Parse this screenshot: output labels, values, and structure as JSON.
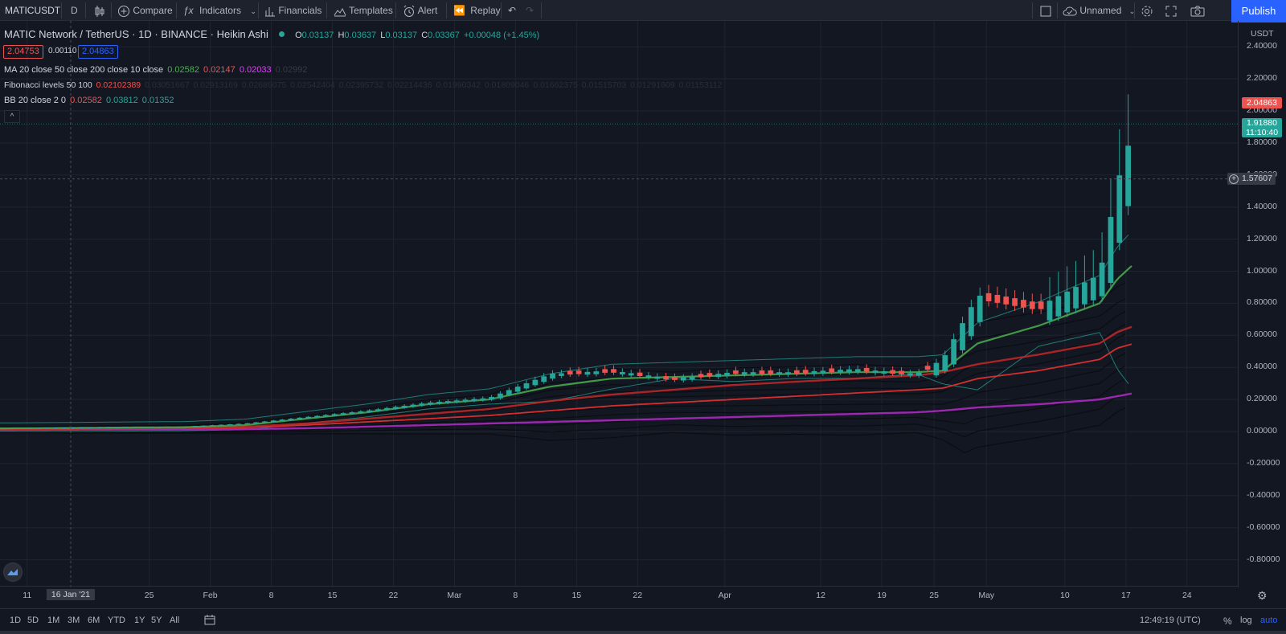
{
  "toolbar": {
    "symbol": "MATICUSDT",
    "interval": "D",
    "compare": "Compare",
    "indicators": "Indicators",
    "financials": "Financials",
    "templates": "Templates",
    "alert": "Alert",
    "replay": "Replay",
    "layout_name": "Unnamed",
    "publish": "Publish"
  },
  "legend": {
    "title": "MATIC Network / TetherUS · 1D · BINANCE · Heikin Ashi",
    "o_label": "O",
    "o_value": "0.03137",
    "h_label": "H",
    "h_value": "0.03637",
    "l_label": "L",
    "l_value": "0.03137",
    "c_label": "C",
    "c_value": "0.03367",
    "change": "+0.00048 (+1.45%)",
    "bid": "2.04753",
    "spread": "0.00110",
    "ask": "2.04863",
    "ma_label": "MA 20 close 50 close 200 close 10 close",
    "ma_values": [
      "0.02582",
      "0.02147",
      "0.02033",
      "0.02992"
    ],
    "fib_label": "Fibonacci levels 50 100",
    "fib_values": [
      "0.02102389",
      "0.03051667",
      "0.02913169",
      "0.02689075",
      "0.02542404",
      "0.02395732",
      "0.02214436",
      "0.01990342",
      "0.01809046",
      "0.01662375",
      "0.01515703",
      "0.01291609",
      "0.01153112"
    ],
    "bb_label": "BB 20 close 2 0",
    "bb_values": [
      "0.02582",
      "0.03812",
      "0.01352"
    ],
    "collapse": "^"
  },
  "price_scale": {
    "currency": "USDT",
    "labels": [
      "2.40000",
      "2.20000",
      "2.00000",
      "1.80000",
      "1.60000",
      "1.40000",
      "1.20000",
      "1.00000",
      "0.80000",
      "0.60000",
      "0.40000",
      "0.20000",
      "0.00000",
      "-0.20000",
      "-0.40000",
      "-0.60000",
      "-0.80000"
    ],
    "ask_tag": "2.04863",
    "last_price_tag": "1.91880",
    "countdown": "11:10:40",
    "crosshair_price": "1.57607"
  },
  "time_scale": {
    "labels": [
      "11",
      "16 Jan '21",
      "25",
      "Feb",
      "8",
      "15",
      "22",
      "Mar",
      "8",
      "15",
      "22",
      "Apr",
      "12",
      "19",
      "25",
      "May",
      "10",
      "17",
      "24"
    ]
  },
  "bottom_bar": {
    "ranges": [
      "1D",
      "5D",
      "1M",
      "3M",
      "6M",
      "YTD",
      "1Y",
      "5Y",
      "All"
    ],
    "clock": "12:49:19 (UTC)",
    "percent": "%",
    "log": "log",
    "auto": "auto"
  },
  "colors": {
    "background": "#131722",
    "up": "#26a69a",
    "down": "#ef5350",
    "ma20": "#4caf50",
    "ma50": "#e0483e",
    "ma200": "#9c27b0",
    "bb": "#26a69a",
    "accent": "#2962ff"
  },
  "chart_data": {
    "type": "candlestick",
    "style": "Heikin Ashi",
    "ylim": [
      -0.9,
      2.45
    ],
    "x_dates": [
      "2021-01-08",
      "2021-01-15",
      "2021-01-22",
      "2021-01-29",
      "2021-02-05",
      "2021-02-12",
      "2021-02-19",
      "2021-02-26",
      "2021-03-05",
      "2021-03-12",
      "2021-03-19",
      "2021-03-26",
      "2021-04-02",
      "2021-04-09",
      "2021-04-16",
      "2021-04-23",
      "2021-04-26",
      "2021-04-30",
      "2021-05-07",
      "2021-05-14",
      "2021-05-16",
      "2021-05-18"
    ],
    "close_series": [
      0.02,
      0.025,
      0.028,
      0.03,
      0.05,
      0.09,
      0.13,
      0.18,
      0.21,
      0.36,
      0.38,
      0.33,
      0.37,
      0.37,
      0.39,
      0.36,
      0.45,
      0.85,
      0.78,
      0.98,
      1.55,
      1.92
    ],
    "ma20_series": [
      0.02,
      0.022,
      0.025,
      0.027,
      0.04,
      0.08,
      0.12,
      0.17,
      0.2,
      0.28,
      0.33,
      0.34,
      0.35,
      0.36,
      0.37,
      0.37,
      0.38,
      0.55,
      0.66,
      0.8,
      0.95,
      1.05
    ],
    "ma50_series": [
      0.015,
      0.017,
      0.02,
      0.022,
      0.03,
      0.05,
      0.08,
      0.11,
      0.14,
      0.19,
      0.23,
      0.26,
      0.29,
      0.31,
      0.33,
      0.35,
      0.37,
      0.42,
      0.48,
      0.55,
      0.62,
      0.66
    ],
    "ma10_series": [
      0.015,
      0.016,
      0.018,
      0.02,
      0.025,
      0.04,
      0.06,
      0.08,
      0.1,
      0.13,
      0.16,
      0.18,
      0.2,
      0.22,
      0.24,
      0.26,
      0.27,
      0.33,
      0.38,
      0.45,
      0.52,
      0.55
    ],
    "ma200_series": [
      0.01,
      0.011,
      0.012,
      0.013,
      0.015,
      0.02,
      0.03,
      0.04,
      0.05,
      0.06,
      0.07,
      0.08,
      0.09,
      0.1,
      0.11,
      0.12,
      0.13,
      0.15,
      0.17,
      0.2,
      0.22,
      0.24
    ],
    "last_price": 1.9188,
    "ask": 2.04863,
    "crosshair_price": 1.57607
  }
}
